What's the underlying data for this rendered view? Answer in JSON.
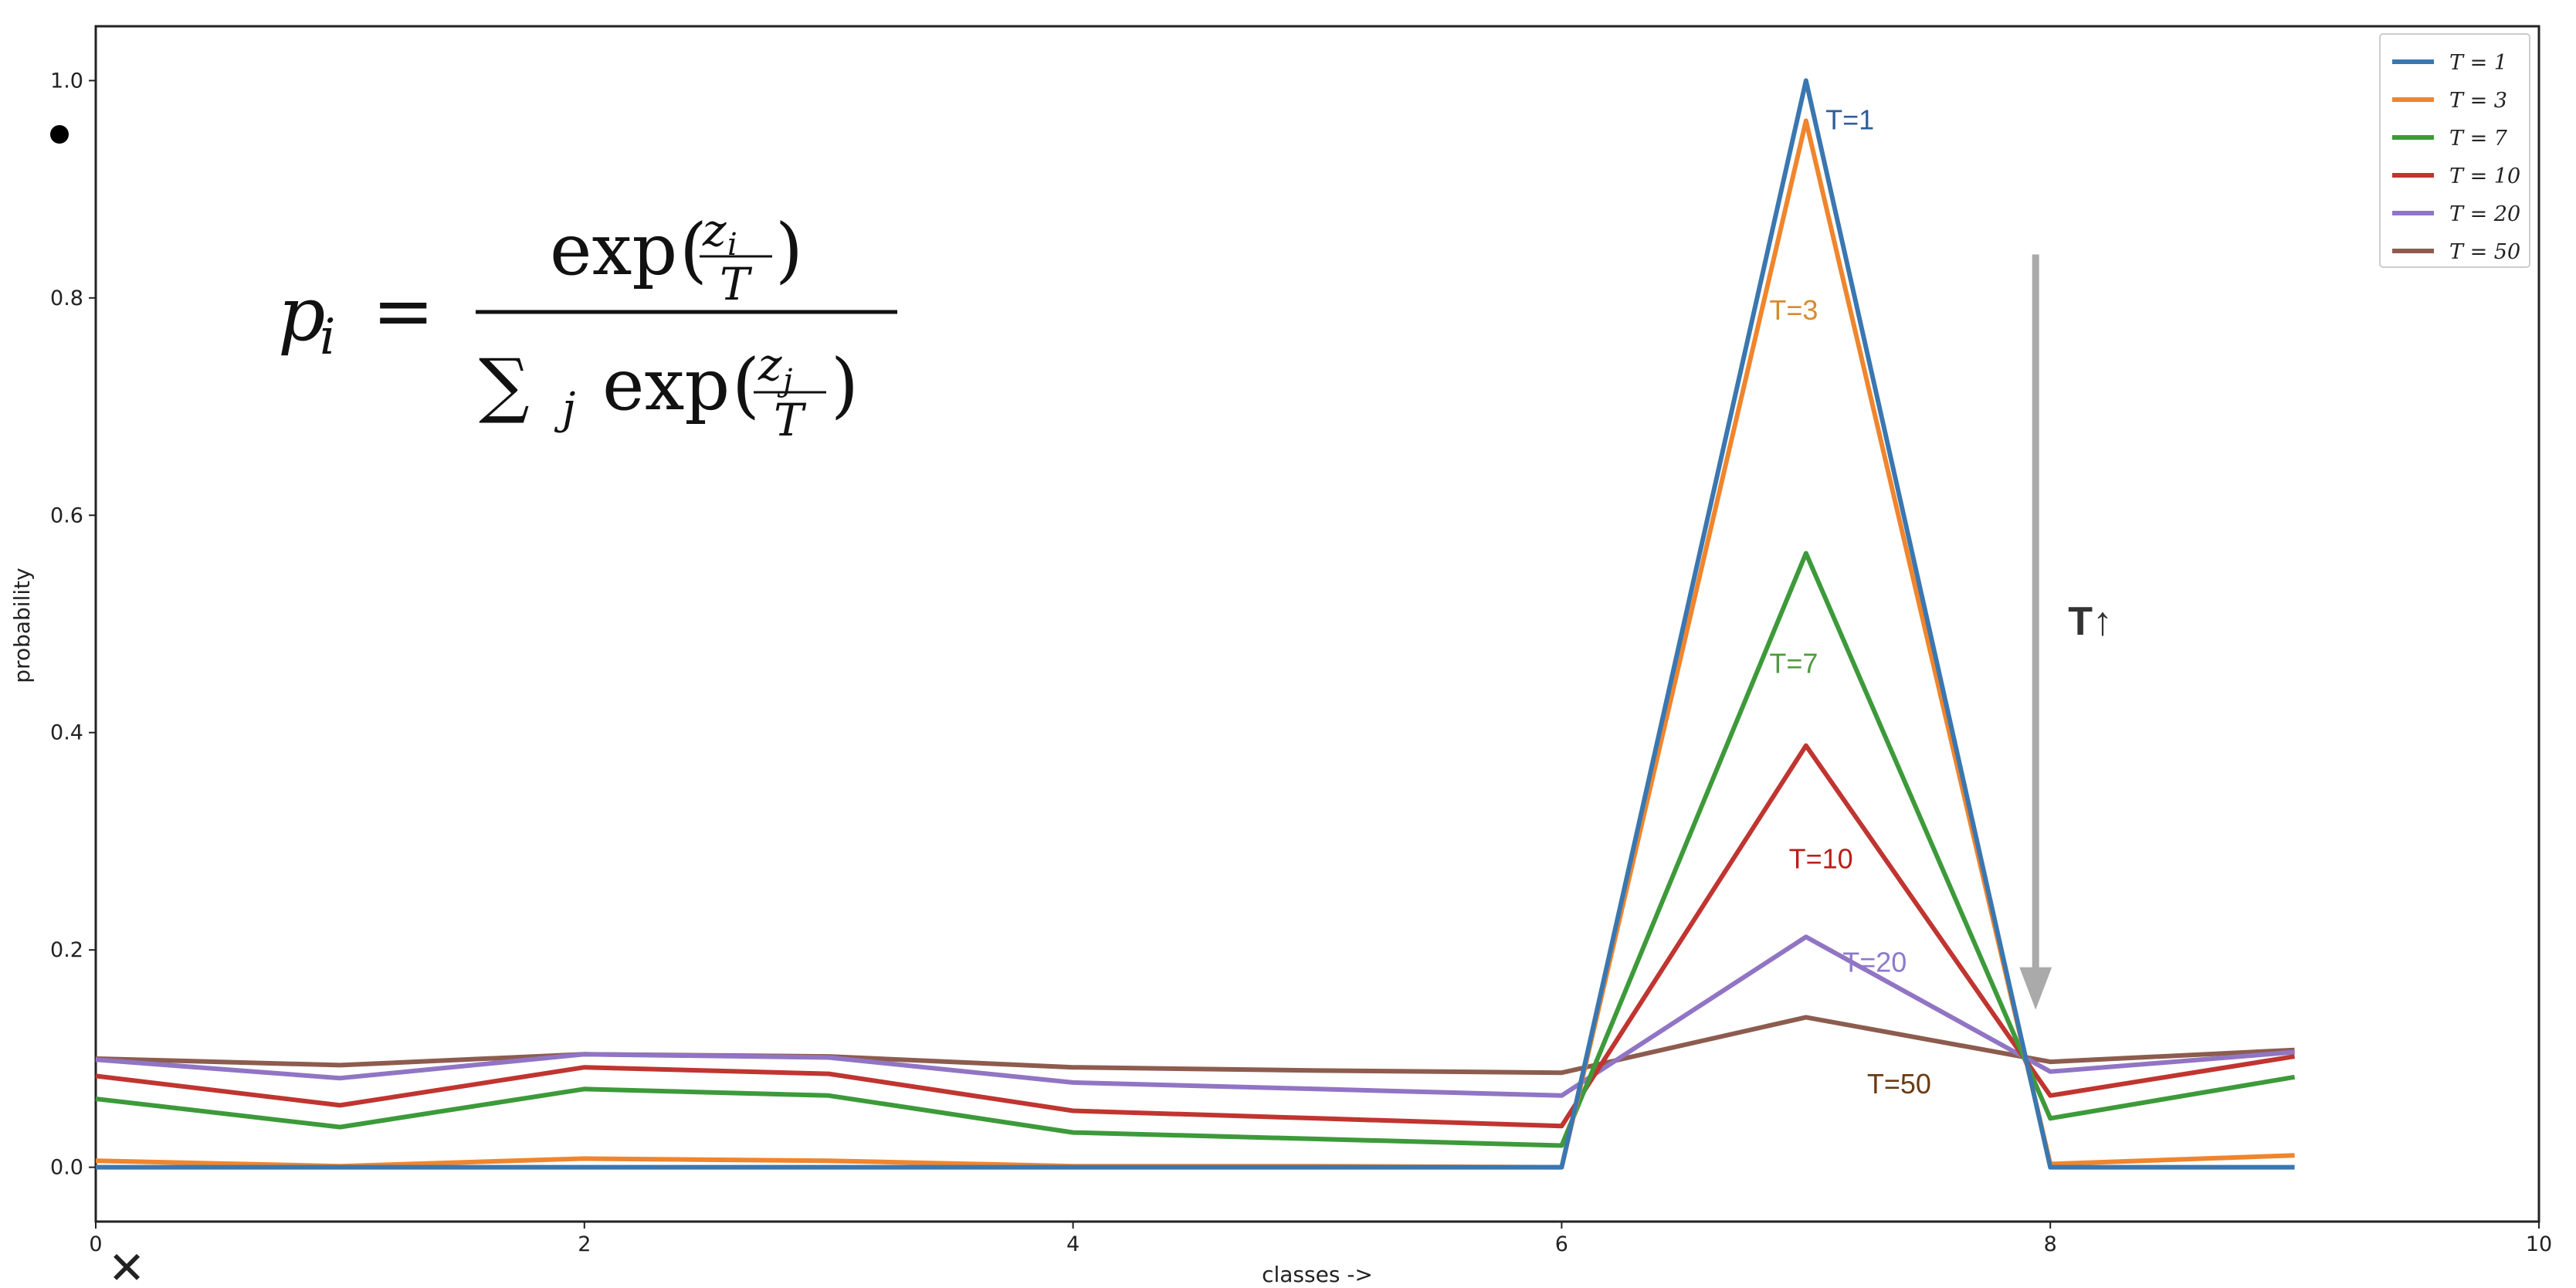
{
  "chart_data": {
    "type": "line",
    "title": "",
    "xlabel": "classes ->",
    "ylabel": "probability",
    "xlim": [
      0,
      10
    ],
    "ylim": [
      -0.05,
      1.05
    ],
    "xticks": [
      "0",
      "2",
      "4",
      "6",
      "8",
      "10"
    ],
    "yticks": [
      "0.0",
      "0.2",
      "0.4",
      "0.6",
      "0.8",
      "1.0"
    ],
    "grid": false,
    "legend_position": "top-right",
    "x": [
      0,
      1,
      2,
      3,
      4,
      5,
      6,
      7,
      8,
      9
    ],
    "series": [
      {
        "name": "T = 1",
        "legend": "T = 1",
        "color": "#3a77b0",
        "values": [
          0.0,
          0.0,
          0.0,
          0.0,
          0.0,
          0.0,
          0.0,
          1.0,
          0.0,
          0.0
        ]
      },
      {
        "name": "T = 3",
        "legend": "T = 3",
        "color": "#f0852d",
        "values": [
          0.006,
          0.001,
          0.008,
          0.006,
          0.001,
          0.001,
          0.0,
          0.963,
          0.003,
          0.011
        ]
      },
      {
        "name": "T = 7",
        "legend": "T = 7",
        "color": "#3d9a3a",
        "values": [
          0.063,
          0.037,
          0.072,
          0.066,
          0.032,
          0.026,
          0.02,
          0.565,
          0.045,
          0.083
        ]
      },
      {
        "name": "T = 10",
        "legend": "T = 10",
        "color": "#c03530",
        "values": [
          0.084,
          0.057,
          0.092,
          0.086,
          0.052,
          0.045,
          0.038,
          0.388,
          0.066,
          0.102
        ]
      },
      {
        "name": "T = 20",
        "legend": "T = 20",
        "color": "#9175c4",
        "values": [
          0.099,
          0.082,
          0.104,
          0.101,
          0.078,
          0.072,
          0.066,
          0.212,
          0.088,
          0.106
        ]
      },
      {
        "name": "T = 50",
        "legend": "T = 50",
        "color": "#8d5c4f",
        "values": [
          0.1,
          0.094,
          0.104,
          0.102,
          0.092,
          0.089,
          0.087,
          0.138,
          0.097,
          0.108
        ]
      }
    ],
    "annotations": [
      {
        "text": "T=1",
        "color": "#2f5d9a",
        "x": 7.08,
        "y": 0.955
      },
      {
        "text": "T=3",
        "color": "#d88a2f",
        "x": 6.85,
        "y": 0.78
      },
      {
        "text": "T=7",
        "color": "#4f9a3f",
        "x": 6.85,
        "y": 0.455
      },
      {
        "text": "T=10",
        "color": "#b81f19",
        "x": 6.93,
        "y": 0.275
      },
      {
        "text": "T=20",
        "color": "#8e79cc",
        "x": 7.15,
        "y": 0.18
      },
      {
        "text": "T=50",
        "color": "#6b3a12",
        "x": 7.25,
        "y": 0.068
      }
    ],
    "arrow": {
      "label": "T↑",
      "x": 7.94,
      "y_from": 0.84,
      "y_to": 0.145,
      "color": "#aaaaaa"
    },
    "formula": {
      "lhs": "p",
      "lhs_sub": "i",
      "equals": "=",
      "func": "exp",
      "num_frac_top": "z",
      "num_frac_top_sub": "i",
      "frac_bottom": "T",
      "sum_symbol": "∑",
      "sum_sub": "j",
      "den_frac_top": "z",
      "den_frac_top_sub": "j"
    },
    "extra_marks": {
      "close_symbol": "✕"
    }
  }
}
